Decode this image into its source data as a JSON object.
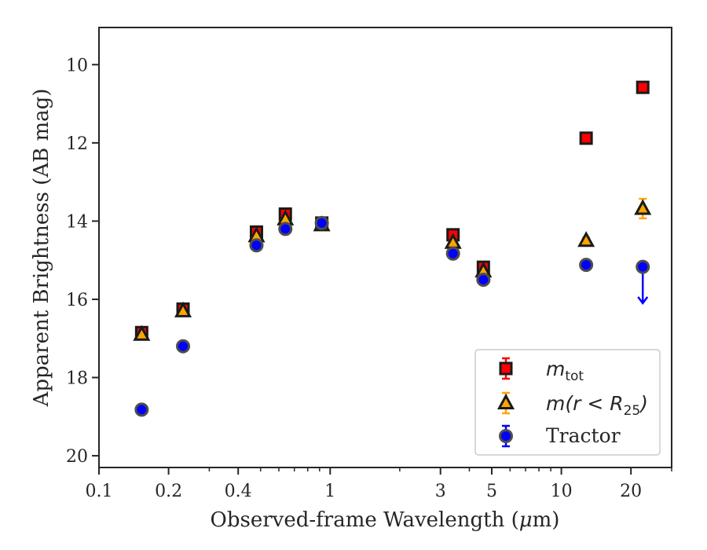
{
  "chart_data": {
    "type": "scatter",
    "title": "",
    "xlabel_prefix": "Observed-frame Wavelength (",
    "xlabel_mu": "μ",
    "xlabel_suffix": "m)",
    "ylabel": "Apparent Brightness (AB mag)",
    "xscale": "log",
    "xlim": [
      0.1,
      30
    ],
    "ylim": [
      20.3,
      9.05
    ],
    "y_inverted": true,
    "grid": false,
    "legend_position": "lower-right",
    "x_ticks": [
      {
        "value": 0.1,
        "label": "0.1"
      },
      {
        "value": 0.2,
        "label": "0.2"
      },
      {
        "value": 0.4,
        "label": "0.4"
      },
      {
        "value": 1,
        "label": "1"
      },
      {
        "value": 3,
        "label": "3"
      },
      {
        "value": 5,
        "label": "5"
      },
      {
        "value": 10,
        "label": "10"
      },
      {
        "value": 20,
        "label": "20"
      }
    ],
    "x_minor_ticks": [
      0.3,
      0.5,
      0.6,
      0.7,
      0.8,
      0.9,
      2,
      4,
      6,
      7,
      8,
      9,
      30
    ],
    "y_ticks": [
      {
        "value": 10,
        "label": "10"
      },
      {
        "value": 12,
        "label": "12"
      },
      {
        "value": 14,
        "label": "14"
      },
      {
        "value": 16,
        "label": "16"
      },
      {
        "value": 18,
        "label": "18"
      },
      {
        "value": 20,
        "label": "20"
      }
    ],
    "series": [
      {
        "name_main": "m",
        "name_sub": "tot",
        "marker": "square",
        "color": "#ff0000",
        "edge": "#1a1a1a",
        "points": [
          {
            "x": 0.153,
            "y": 16.85,
            "err": 0.05
          },
          {
            "x": 0.231,
            "y": 16.25,
            "err": 0.05
          },
          {
            "x": 0.48,
            "y": 14.28,
            "err": 0.05
          },
          {
            "x": 0.64,
            "y": 13.82,
            "err": 0.05
          },
          {
            "x": 0.92,
            "y": 14.05,
            "err": 0.05
          },
          {
            "x": 3.4,
            "y": 14.35,
            "err": 0.05
          },
          {
            "x": 4.6,
            "y": 15.18,
            "err": 0.05
          },
          {
            "x": 12.8,
            "y": 11.88,
            "err": 0.05
          },
          {
            "x": 22.5,
            "y": 10.58,
            "err": 0.05
          }
        ]
      },
      {
        "name_main": "m(r < R",
        "name_sub": "25",
        "name_tail": ")",
        "marker": "triangle",
        "color": "#ffa500",
        "edge": "#1a1a1a",
        "points": [
          {
            "x": 0.153,
            "y": 16.9,
            "err": 0.05
          },
          {
            "x": 0.231,
            "y": 16.3,
            "err": 0.05
          },
          {
            "x": 0.48,
            "y": 14.38,
            "err": 0.05
          },
          {
            "x": 0.64,
            "y": 13.95,
            "err": 0.05
          },
          {
            "x": 0.92,
            "y": 14.1,
            "err": 0.05
          },
          {
            "x": 3.4,
            "y": 14.55,
            "err": 0.05
          },
          {
            "x": 4.6,
            "y": 15.28,
            "err": 0.05
          },
          {
            "x": 12.8,
            "y": 14.5,
            "err": 0.08
          },
          {
            "x": 22.5,
            "y": 13.68,
            "err": 0.25
          }
        ]
      },
      {
        "name": "Tractor",
        "marker": "circle",
        "color": "#0000ff",
        "edge": "#4d4d4d",
        "points": [
          {
            "x": 0.153,
            "y": 18.82,
            "err": 0.05
          },
          {
            "x": 0.231,
            "y": 17.2,
            "err": 0.05
          },
          {
            "x": 0.48,
            "y": 14.62,
            "err": 0.05
          },
          {
            "x": 0.64,
            "y": 14.2,
            "err": 0.05
          },
          {
            "x": 0.92,
            "y": 14.05,
            "err": 0.05
          },
          {
            "x": 3.4,
            "y": 14.83,
            "err": 0.05
          },
          {
            "x": 4.6,
            "y": 15.5,
            "err": 0.05
          },
          {
            "x": 12.8,
            "y": 15.12,
            "err": 0.05
          },
          {
            "x": 22.5,
            "y": 15.17,
            "err": 0.05,
            "upper_limit_to": 16.1
          }
        ]
      }
    ]
  }
}
